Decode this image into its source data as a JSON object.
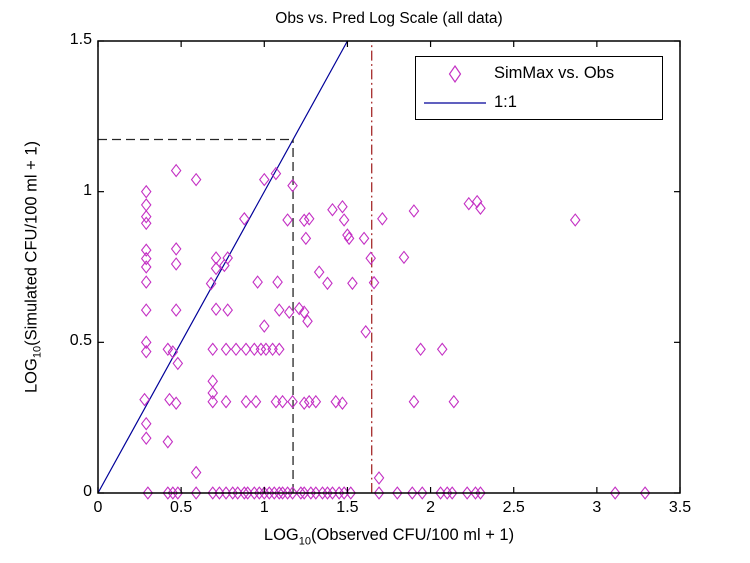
{
  "chart_data": {
    "type": "scatter",
    "title": "Obs vs. Pred Log Scale (all data)",
    "xlabel": {
      "prefix": "LOG",
      "sub": "10",
      "rest": "(Observed CFU/100 ml + 1)"
    },
    "ylabel": {
      "prefix": "LOG",
      "sub": "10",
      "rest": "(Simulated CFU/100 ml + 1)"
    },
    "xlim": [
      0,
      3.5
    ],
    "ylim": [
      0,
      1.5
    ],
    "xticks": [
      0,
      0.5,
      1,
      1.5,
      2,
      2.5,
      3,
      3.5
    ],
    "yticks": [
      0,
      0.5,
      1,
      1.5
    ],
    "grid": false,
    "colors": {
      "marker": "#C431C4",
      "line_1to1": "#000099",
      "dashed_black": "#262626",
      "dashdot_red": "#A52A2A",
      "axis": "#000000"
    },
    "legend": {
      "position": "upper-right",
      "items": [
        {
          "label": "SimMax vs. Obs",
          "marker": "diamond",
          "color": "#C431C4"
        },
        {
          "label": "1:1",
          "marker": "line",
          "color": "#000099"
        }
      ]
    },
    "lines": [
      {
        "name": "1:1",
        "style": "solid",
        "color": "#000099",
        "from": [
          0,
          0
        ],
        "to": [
          1.5,
          1.5
        ]
      },
      {
        "name": "threshold-horizontal",
        "style": "dashed",
        "color": "#262626",
        "from": [
          0,
          1.173
        ],
        "to": [
          1.173,
          1.173
        ]
      },
      {
        "name": "threshold-vertical",
        "style": "dashed",
        "color": "#262626",
        "from": [
          1.173,
          0
        ],
        "to": [
          1.173,
          1.173
        ]
      },
      {
        "name": "red-threshold-vertical",
        "style": "dashdot",
        "color": "#A52A2A",
        "from": [
          1.646,
          0
        ],
        "to": [
          1.646,
          1.5
        ]
      }
    ],
    "series": [
      {
        "name": "SimMax vs. Obs",
        "marker": "diamond",
        "color": "#C431C4",
        "points": [
          [
            0.47,
            1.07
          ],
          [
            0.59,
            1.04
          ],
          [
            1.0,
            1.04
          ],
          [
            1.07,
            1.06
          ],
          [
            1.17,
            1.02
          ],
          [
            0.29,
            1.0
          ],
          [
            0.29,
            0.956
          ],
          [
            0.29,
            0.917
          ],
          [
            0.29,
            0.895
          ],
          [
            0.88,
            0.91
          ],
          [
            1.14,
            0.906
          ],
          [
            1.41,
            0.94
          ],
          [
            1.47,
            0.95
          ],
          [
            1.48,
            0.906
          ],
          [
            1.24,
            0.905
          ],
          [
            1.27,
            0.91
          ],
          [
            1.71,
            0.91
          ],
          [
            1.9,
            0.936
          ],
          [
            2.23,
            0.96
          ],
          [
            2.28,
            0.967
          ],
          [
            2.3,
            0.945
          ],
          [
            2.87,
            0.906
          ],
          [
            1.25,
            0.845
          ],
          [
            1.5,
            0.856
          ],
          [
            1.51,
            0.845
          ],
          [
            1.6,
            0.845
          ],
          [
            0.29,
            0.806
          ],
          [
            0.29,
            0.778
          ],
          [
            0.29,
            0.75
          ],
          [
            0.47,
            0.81
          ],
          [
            0.47,
            0.76
          ],
          [
            0.71,
            0.78
          ],
          [
            0.78,
            0.78
          ],
          [
            0.71,
            0.745
          ],
          [
            0.76,
            0.755
          ],
          [
            1.64,
            0.779
          ],
          [
            1.84,
            0.782
          ],
          [
            0.29,
            0.7
          ],
          [
            0.68,
            0.695
          ],
          [
            0.96,
            0.7
          ],
          [
            1.08,
            0.7
          ],
          [
            1.33,
            0.733
          ],
          [
            1.38,
            0.696
          ],
          [
            1.53,
            0.696
          ],
          [
            1.66,
            0.698
          ],
          [
            0.29,
            0.607
          ],
          [
            0.47,
            0.607
          ],
          [
            0.71,
            0.61
          ],
          [
            0.78,
            0.607
          ],
          [
            1.09,
            0.607
          ],
          [
            1.15,
            0.6
          ],
          [
            1.21,
            0.612
          ],
          [
            1.24,
            0.6
          ],
          [
            1.0,
            0.554
          ],
          [
            1.26,
            0.57
          ],
          [
            1.61,
            0.535
          ],
          [
            0.29,
            0.5
          ],
          [
            0.29,
            0.469
          ],
          [
            0.42,
            0.477
          ],
          [
            0.45,
            0.468
          ],
          [
            0.69,
            0.477
          ],
          [
            0.77,
            0.477
          ],
          [
            0.83,
            0.477
          ],
          [
            0.89,
            0.477
          ],
          [
            0.94,
            0.477
          ],
          [
            0.98,
            0.477
          ],
          [
            1.01,
            0.477
          ],
          [
            1.05,
            0.477
          ],
          [
            1.09,
            0.477
          ],
          [
            1.94,
            0.477
          ],
          [
            2.07,
            0.477
          ],
          [
            0.48,
            0.43
          ],
          [
            0.69,
            0.371
          ],
          [
            0.69,
            0.332
          ],
          [
            0.28,
            0.31
          ],
          [
            0.43,
            0.31
          ],
          [
            0.47,
            0.298
          ],
          [
            0.69,
            0.303
          ],
          [
            0.77,
            0.303
          ],
          [
            0.89,
            0.303
          ],
          [
            0.95,
            0.303
          ],
          [
            1.07,
            0.303
          ],
          [
            1.11,
            0.303
          ],
          [
            1.17,
            0.303
          ],
          [
            1.24,
            0.298
          ],
          [
            1.27,
            0.303
          ],
          [
            1.31,
            0.303
          ],
          [
            1.43,
            0.303
          ],
          [
            1.47,
            0.298
          ],
          [
            1.9,
            0.303
          ],
          [
            2.14,
            0.303
          ],
          [
            0.29,
            0.23
          ],
          [
            0.29,
            0.182
          ],
          [
            0.42,
            0.17
          ],
          [
            0.59,
            0.068
          ],
          [
            1.69,
            0.05
          ],
          [
            0.3,
            0
          ],
          [
            0.42,
            0
          ],
          [
            0.45,
            0
          ],
          [
            0.48,
            0
          ],
          [
            0.59,
            0
          ],
          [
            0.69,
            0
          ],
          [
            0.73,
            0
          ],
          [
            0.77,
            0
          ],
          [
            0.81,
            0
          ],
          [
            0.84,
            0
          ],
          [
            0.88,
            0
          ],
          [
            0.9,
            0
          ],
          [
            0.94,
            0
          ],
          [
            0.97,
            0
          ],
          [
            1.0,
            0
          ],
          [
            1.03,
            0
          ],
          [
            1.06,
            0
          ],
          [
            1.09,
            0
          ],
          [
            1.11,
            0
          ],
          [
            1.14,
            0
          ],
          [
            1.17,
            0
          ],
          [
            1.22,
            0
          ],
          [
            1.24,
            0
          ],
          [
            1.28,
            0
          ],
          [
            1.31,
            0
          ],
          [
            1.35,
            0
          ],
          [
            1.38,
            0
          ],
          [
            1.41,
            0
          ],
          [
            1.45,
            0
          ],
          [
            1.48,
            0
          ],
          [
            1.52,
            0
          ],
          [
            1.69,
            0
          ],
          [
            1.8,
            0
          ],
          [
            1.89,
            0
          ],
          [
            1.95,
            0
          ],
          [
            2.06,
            0
          ],
          [
            2.1,
            0
          ],
          [
            2.13,
            0
          ],
          [
            2.22,
            0
          ],
          [
            2.27,
            0
          ],
          [
            2.3,
            0
          ],
          [
            3.11,
            0
          ],
          [
            3.29,
            0
          ]
        ]
      }
    ]
  }
}
